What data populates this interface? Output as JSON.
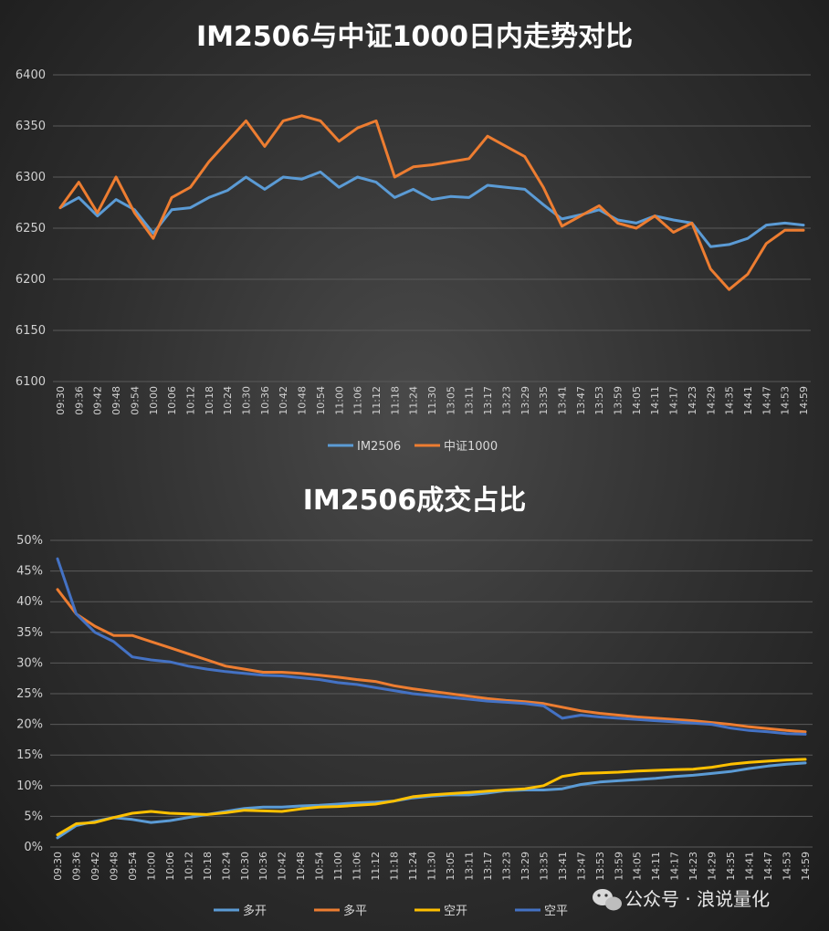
{
  "colors": {
    "blue": "#5b9bd5",
    "orange": "#ed7d31",
    "yellow": "#ffc000",
    "navy": "#4472c4",
    "grid": "#5a5a5a",
    "text": "#d0d0d0"
  },
  "watermark": {
    "icon": "wechat-icon",
    "text": "公众号 · 浪说量化"
  },
  "chart_data": [
    {
      "type": "line",
      "title": "IM2506与中证1000日内走势对比",
      "xlabel": "",
      "ylabel": "",
      "ylim": [
        6100,
        6400
      ],
      "yticks": [
        "6100",
        "6150",
        "6200",
        "6250",
        "6300",
        "6350",
        "6400"
      ],
      "grid": true,
      "legend": "bottom",
      "x_tick_labels": [
        "09:30",
        "09:36",
        "09:42",
        "09:48",
        "09:54",
        "10:00",
        "10:06",
        "10:12",
        "10:18",
        "10:24",
        "10:30",
        "10:36",
        "10:42",
        "10:48",
        "10:54",
        "11:00",
        "11:06",
        "11:12",
        "11:18",
        "11:24",
        "11:30",
        "13:05",
        "13:11",
        "13:17",
        "13:23",
        "13:29",
        "13:35",
        "13:41",
        "13:47",
        "13:53",
        "13:59",
        "14:05",
        "14:11",
        "14:17",
        "14:23",
        "14:29",
        "14:35",
        "14:41",
        "14:47",
        "14:53",
        "14:59"
      ],
      "series": [
        {
          "name": "IM2506",
          "color": "#5b9bd5",
          "values": [
            6270,
            6280,
            6262,
            6278,
            6268,
            6245,
            6268,
            6270,
            6280,
            6287,
            6300,
            6288,
            6300,
            6298,
            6305,
            6290,
            6300,
            6295,
            6280,
            6288,
            6278,
            6281,
            6280,
            6292,
            6290,
            6288,
            6273,
            6259,
            6263,
            6268,
            6258,
            6255,
            6262,
            6258,
            6255,
            6232,
            6234,
            6240,
            6253,
            6255,
            6253
          ]
        },
        {
          "name": "中证1000",
          "color": "#ed7d31",
          "values": [
            6270,
            6295,
            6265,
            6300,
            6265,
            6240,
            6280,
            6290,
            6315,
            6335,
            6355,
            6330,
            6355,
            6360,
            6355,
            6335,
            6348,
            6355,
            6300,
            6310,
            6312,
            6315,
            6318,
            6340,
            6330,
            6320,
            6290,
            6252,
            6262,
            6272,
            6255,
            6250,
            6262,
            6246,
            6255,
            6210,
            6190,
            6205,
            6235,
            6248,
            6248
          ]
        }
      ]
    },
    {
      "type": "line",
      "title": "IM2506成交占比",
      "xlabel": "",
      "ylabel": "",
      "ylim": [
        0,
        50
      ],
      "yticks": [
        "0%",
        "5%",
        "10%",
        "15%",
        "20%",
        "25%",
        "30%",
        "35%",
        "40%",
        "45%",
        "50%"
      ],
      "grid": true,
      "legend": "bottom",
      "x_tick_labels": [
        "09:30",
        "09:36",
        "09:42",
        "09:48",
        "09:54",
        "10:00",
        "10:06",
        "10:12",
        "10:18",
        "10:24",
        "10:30",
        "10:36",
        "10:42",
        "10:48",
        "10:54",
        "11:00",
        "11:06",
        "11:12",
        "11:18",
        "11:24",
        "11:30",
        "13:05",
        "13:11",
        "13:17",
        "13:23",
        "13:29",
        "13:35",
        "13:41",
        "13:47",
        "13:53",
        "13:59",
        "14:05",
        "14:11",
        "14:17",
        "14:23",
        "14:29",
        "14:35",
        "14:41",
        "14:47",
        "14:53",
        "14:59"
      ],
      "series": [
        {
          "name": "多开",
          "color": "#5b9bd5",
          "values": [
            1.5,
            3.5,
            4.2,
            4.8,
            4.5,
            4.0,
            4.3,
            4.8,
            5.3,
            5.8,
            6.3,
            6.5,
            6.5,
            6.7,
            6.8,
            7.0,
            7.2,
            7.3,
            7.5,
            8.0,
            8.3,
            8.5,
            8.5,
            8.8,
            9.2,
            9.3,
            9.3,
            9.5,
            10.2,
            10.6,
            10.8,
            11.0,
            11.2,
            11.5,
            11.7,
            12.0,
            12.3,
            12.8,
            13.2,
            13.5,
            13.7
          ]
        },
        {
          "name": "多平",
          "color": "#ed7d31",
          "values": [
            42,
            38,
            36,
            34.5,
            34.5,
            33.5,
            32.5,
            31.5,
            30.5,
            29.5,
            29.0,
            28.5,
            28.5,
            28.3,
            28.0,
            27.7,
            27.3,
            27.0,
            26.3,
            25.8,
            25.4,
            25.0,
            24.6,
            24.2,
            23.9,
            23.7,
            23.4,
            22.8,
            22.2,
            21.8,
            21.5,
            21.2,
            21.0,
            20.8,
            20.6,
            20.3,
            20.0,
            19.6,
            19.3,
            19.0,
            18.8
          ]
        },
        {
          "name": "空开",
          "color": "#ffc000",
          "values": [
            2,
            3.8,
            4.0,
            4.8,
            5.5,
            5.8,
            5.5,
            5.4,
            5.3,
            5.6,
            6.0,
            5.9,
            5.8,
            6.2,
            6.5,
            6.6,
            6.8,
            7.0,
            7.5,
            8.2,
            8.5,
            8.7,
            8.9,
            9.1,
            9.3,
            9.5,
            10.0,
            11.5,
            12.0,
            12.1,
            12.2,
            12.4,
            12.5,
            12.6,
            12.7,
            13.0,
            13.5,
            13.8,
            14.0,
            14.2,
            14.3
          ]
        },
        {
          "name": "空平",
          "color": "#4472c4",
          "values": [
            47,
            38,
            35,
            33.5,
            31,
            30.5,
            30.2,
            29.5,
            29.0,
            28.6,
            28.3,
            28.0,
            27.9,
            27.6,
            27.3,
            26.8,
            26.5,
            26.0,
            25.5,
            25.0,
            24.7,
            24.4,
            24.1,
            23.8,
            23.6,
            23.4,
            23.0,
            21.0,
            21.5,
            21.2,
            21.0,
            20.8,
            20.6,
            20.4,
            20.2,
            20.0,
            19.4,
            19.0,
            18.8,
            18.5,
            18.4
          ]
        }
      ]
    }
  ]
}
